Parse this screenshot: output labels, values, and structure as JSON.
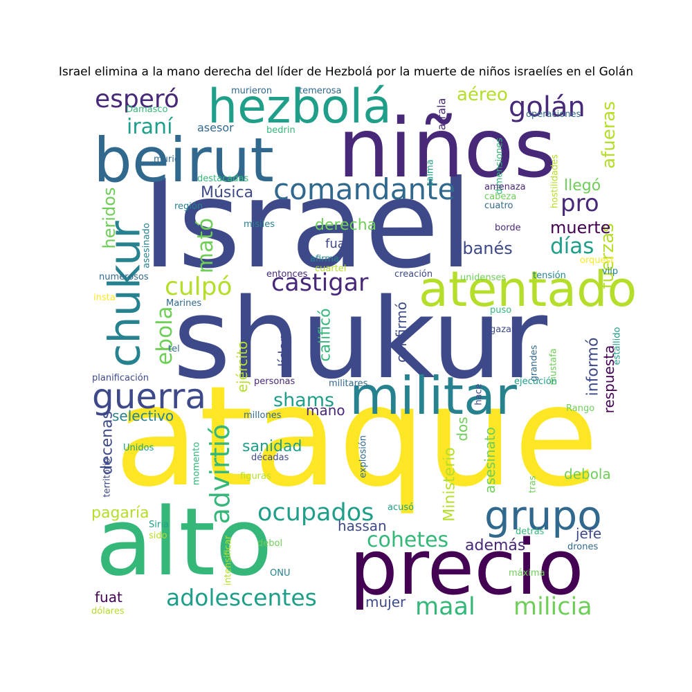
{
  "title": "Israel elimina a la mano derecha del líder de Hezbolá por la muerte de niños israelíes en el Golán",
  "palette": [
    "#440154",
    "#482878",
    "#3e4989",
    "#31688e",
    "#26828e",
    "#1f9e89",
    "#35b779",
    "#6ece58",
    "#b5de2b",
    "#fde725"
  ],
  "words": [
    {
      "text": "Israel",
      "color": "#3e4989"
    },
    {
      "text": "ataque",
      "color": "#fde725"
    },
    {
      "text": "shukur",
      "color": "#3e4989"
    },
    {
      "text": "alto",
      "color": "#35b779"
    },
    {
      "text": "niños",
      "color": "#482878"
    },
    {
      "text": "precio",
      "color": "#440154"
    },
    {
      "text": "beirut",
      "color": "#31688e"
    },
    {
      "text": "militar",
      "color": "#26828e"
    },
    {
      "text": "atentado",
      "color": "#b5de2b"
    },
    {
      "text": "hezbolá",
      "color": "#1f9e89"
    },
    {
      "text": "chukur",
      "color": "#26828e"
    },
    {
      "text": "grupo",
      "color": "#31688e"
    },
    {
      "text": "comandante",
      "color": "#31688e"
    },
    {
      "text": "guerra",
      "color": "#3e4989"
    },
    {
      "text": "ocupados",
      "color": "#1f9e89"
    },
    {
      "text": "adolescentes",
      "color": "#1f9e89"
    },
    {
      "text": "milicia",
      "color": "#6ece58"
    },
    {
      "text": "maal",
      "color": "#35b779"
    },
    {
      "text": "castigar",
      "color": "#482878"
    },
    {
      "text": "esperó",
      "color": "#482878"
    },
    {
      "text": "culpó",
      "color": "#b5de2b"
    },
    {
      "text": "golán",
      "color": "#482878"
    },
    {
      "text": "cohetes",
      "color": "#35b779"
    },
    {
      "text": "además",
      "color": "#482878"
    },
    {
      "text": "advirtió",
      "color": "#35b779"
    },
    {
      "text": "iraní",
      "color": "#1f9e89"
    },
    {
      "text": "mató",
      "color": "#6ece58"
    },
    {
      "text": "pro",
      "color": "#482878"
    },
    {
      "text": "días",
      "color": "#1f9e89"
    },
    {
      "text": "shams",
      "color": "#1f9e89"
    },
    {
      "text": "ebola",
      "color": "#6ece58"
    },
    {
      "text": "fuerzas",
      "color": "#b5de2b"
    },
    {
      "text": "afueras",
      "color": "#b5de2b"
    },
    {
      "text": "heridos",
      "color": "#6ece58"
    },
    {
      "text": "aéreo",
      "color": "#b5de2b"
    },
    {
      "text": "muerte",
      "color": "#440154"
    },
    {
      "text": "libanés",
      "color": "#3e4989"
    },
    {
      "text": "llegó",
      "color": "#6ece58"
    },
    {
      "text": "Música",
      "color": "#3e4989"
    },
    {
      "text": "derecha",
      "color": "#6ece58"
    },
    {
      "text": "sanidad",
      "color": "#1f9e89"
    },
    {
      "text": "pagaría",
      "color": "#b5de2b"
    },
    {
      "text": "hassan",
      "color": "#3e4989"
    },
    {
      "text": "mujer",
      "color": "#3e4989"
    },
    {
      "text": "fuat",
      "color": "#440154"
    },
    {
      "text": "debola",
      "color": "#6ece58"
    },
    {
      "text": "jefe",
      "color": "#3e4989"
    },
    {
      "text": "respuesta",
      "color": "#440154"
    },
    {
      "text": "informó",
      "color": "#3e4989"
    },
    {
      "text": "decenas",
      "color": "#3e4989"
    },
    {
      "text": "selectivo",
      "color": "#26828e"
    },
    {
      "text": "Ministerio",
      "color": "#b5de2b"
    },
    {
      "text": "dos",
      "color": "#6ece58"
    },
    {
      "text": "asesinato",
      "color": "#6ece58"
    },
    {
      "text": "mano",
      "color": "#482878"
    },
    {
      "text": "calificó",
      "color": "#35b779"
    },
    {
      "text": "confirmó",
      "color": "#3e4989"
    },
    {
      "text": "ejército",
      "color": "#b5de2b"
    },
    {
      "text": "líder",
      "color": "#3e4989"
    },
    {
      "text": "fua",
      "color": "#3e4989"
    },
    {
      "text": "asesor",
      "color": "#31688e"
    },
    {
      "text": "narrala",
      "color": "#482878"
    },
    {
      "text": "murieron",
      "color": "#31688e"
    },
    {
      "text": "temerosa",
      "color": "#31688e"
    },
    {
      "text": "Damasco",
      "color": "#35b779"
    },
    {
      "text": "bedrin",
      "color": "#35b779"
    },
    {
      "text": "operaciones",
      "color": "#31688e"
    },
    {
      "text": "dimensiones",
      "color": "#35b779"
    },
    {
      "text": "calma",
      "color": "#1f9e89"
    },
    {
      "text": "hostilidades",
      "color": "#b5de2b"
    },
    {
      "text": "murió",
      "color": "#31688e"
    },
    {
      "text": "destacadas",
      "color": "#35b779"
    },
    {
      "text": "amenaza",
      "color": "#482878"
    },
    {
      "text": "cabeza",
      "color": "#6ece58"
    },
    {
      "text": "cuatro",
      "color": "#31688e"
    },
    {
      "text": "región",
      "color": "#26828e"
    },
    {
      "text": "asesinado",
      "color": "#26828e"
    },
    {
      "text": "misiles",
      "color": "#26828e"
    },
    {
      "text": "borde",
      "color": "#482878"
    },
    {
      "text": "afirma",
      "color": "#26828e"
    },
    {
      "text": "cuartel",
      "color": "#b5de2b"
    },
    {
      "text": "orquest",
      "color": "#fde725"
    },
    {
      "text": "viip",
      "color": "#26828e"
    },
    {
      "text": "numerosos",
      "color": "#31688e"
    },
    {
      "text": "entonces",
      "color": "#482878"
    },
    {
      "text": "creación",
      "color": "#3e4989"
    },
    {
      "text": "unidenses",
      "color": "#6ece58"
    },
    {
      "text": "tensión",
      "color": "#26828e"
    },
    {
      "text": "insta",
      "color": "#fde725"
    },
    {
      "text": "Marines",
      "color": "#31688e"
    },
    {
      "text": "puso",
      "color": "#35b779"
    },
    {
      "text": "gaza",
      "color": "#3e4989"
    },
    {
      "text": "tel",
      "color": "#31688e"
    },
    {
      "text": "mustafa",
      "color": "#6ece58"
    },
    {
      "text": "grandes",
      "color": "#31688e"
    },
    {
      "text": "estallido",
      "color": "#1f9e89"
    },
    {
      "text": "planificación",
      "color": "#3e4989"
    },
    {
      "text": "personas",
      "color": "#482878"
    },
    {
      "text": "militares",
      "color": "#31688e"
    },
    {
      "text": "hace",
      "color": "#3e4989"
    },
    {
      "text": "ejecución",
      "color": "#1f9e89"
    },
    {
      "text": "millones",
      "color": "#31688e"
    },
    {
      "text": "Rango",
      "color": "#6ece58"
    },
    {
      "text": "Unidos",
      "color": "#1f9e89"
    },
    {
      "text": "momento",
      "color": "#35b779"
    },
    {
      "text": "explosión",
      "color": "#31688e"
    },
    {
      "text": "décadas",
      "color": "#3e4989"
    },
    {
      "text": "figuras",
      "color": "#b5de2b"
    },
    {
      "text": "territorio",
      "color": "#3e4989"
    },
    {
      "text": "tras",
      "color": "#6ece58"
    },
    {
      "text": "acusó",
      "color": "#1f9e89"
    },
    {
      "text": "Siria",
      "color": "#1f9e89"
    },
    {
      "text": "sido",
      "color": "#b5de2b"
    },
    {
      "text": "detrás",
      "color": "#35b779"
    },
    {
      "text": "debol",
      "color": "#6ece58"
    },
    {
      "text": "drones",
      "color": "#31688e"
    },
    {
      "text": "intensificar",
      "color": "#b5de2b"
    },
    {
      "text": "ONU",
      "color": "#26828e"
    },
    {
      "text": "máxima",
      "color": "#6ece58"
    },
    {
      "text": "dólares",
      "color": "#b5de2b"
    }
  ]
}
